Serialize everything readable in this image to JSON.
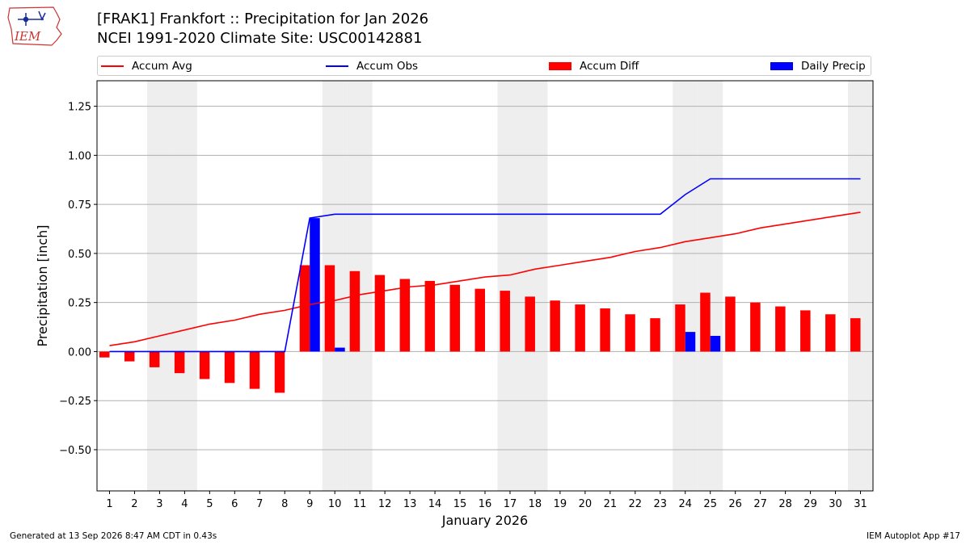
{
  "header": {
    "logo_text": "IEM",
    "title_line1": "[FRAK1] Frankfort :: Precipitation for Jan 2026",
    "title_line2": "NCEI 1991-2020 Climate Site: USC00142881"
  },
  "footer": {
    "generated": "Generated at 13 Sep 2026 8:47 AM CDT in 0.43s",
    "app": "IEM Autoplot App #17"
  },
  "legend": {
    "accum_avg": "Accum Avg",
    "accum_obs": "Accum Obs",
    "accum_diff": "Accum Diff",
    "daily_precip": "Daily Precip"
  },
  "colors": {
    "avg": "#ff0000",
    "obs": "#0000ff",
    "diff": "#ff0000",
    "daily": "#0000ff",
    "weekend_band": "#eeeeee",
    "grid": "#b0b0b0"
  },
  "chart_data": {
    "type": "bar",
    "xlabel": "January 2026",
    "ylabel": "Precipitation [inch]",
    "x": [
      1,
      2,
      3,
      4,
      5,
      6,
      7,
      8,
      9,
      10,
      11,
      12,
      13,
      14,
      15,
      16,
      17,
      18,
      19,
      20,
      21,
      22,
      23,
      24,
      25,
      26,
      27,
      28,
      29,
      30,
      31
    ],
    "xlim": [
      0.5,
      31.5
    ],
    "ylim": [
      -0.71,
      1.38
    ],
    "yticks": [
      -0.5,
      -0.25,
      0.0,
      0.25,
      0.5,
      0.75,
      1.0,
      1.25
    ],
    "ytick_labels": [
      "−0.50",
      "−0.25",
      "0.00",
      "0.25",
      "0.50",
      "0.75",
      "1.00",
      "1.25"
    ],
    "grid": "horizontal",
    "legend_position": "top",
    "weekend_days": [
      3,
      4,
      10,
      11,
      17,
      18,
      24,
      25,
      31
    ],
    "series": [
      {
        "name": "Accum Avg",
        "kind": "line",
        "values": [
          0.03,
          0.05,
          0.08,
          0.11,
          0.14,
          0.16,
          0.19,
          0.21,
          0.24,
          0.26,
          0.29,
          0.31,
          0.33,
          0.34,
          0.36,
          0.38,
          0.39,
          0.42,
          0.44,
          0.46,
          0.48,
          0.51,
          0.53,
          0.56,
          0.58,
          0.6,
          0.63,
          0.65,
          0.67,
          0.69,
          0.71
        ]
      },
      {
        "name": "Accum Obs",
        "kind": "line",
        "values": [
          0,
          0,
          0,
          0,
          0,
          0,
          0,
          0,
          0.68,
          0.7,
          0.7,
          0.7,
          0.7,
          0.7,
          0.7,
          0.7,
          0.7,
          0.7,
          0.7,
          0.7,
          0.7,
          0.7,
          0.7,
          0.8,
          0.88,
          0.88,
          0.88,
          0.88,
          0.88,
          0.88,
          0.88
        ]
      },
      {
        "name": "Accum Diff",
        "kind": "bar",
        "values": [
          -0.03,
          -0.05,
          -0.08,
          -0.11,
          -0.14,
          -0.16,
          -0.19,
          -0.21,
          0.44,
          0.44,
          0.41,
          0.39,
          0.37,
          0.36,
          0.34,
          0.32,
          0.31,
          0.28,
          0.26,
          0.24,
          0.22,
          0.19,
          0.17,
          0.24,
          0.3,
          0.28,
          0.25,
          0.23,
          0.21,
          0.19,
          0.17
        ]
      },
      {
        "name": "Daily Precip",
        "kind": "bar",
        "values": [
          0,
          0,
          0,
          0,
          0,
          0,
          0,
          0,
          0.68,
          0.02,
          0,
          0,
          0,
          0,
          0,
          0,
          0,
          0,
          0,
          0,
          0,
          0,
          0,
          0.1,
          0.08,
          0,
          0,
          0,
          0,
          0,
          0
        ]
      }
    ]
  }
}
